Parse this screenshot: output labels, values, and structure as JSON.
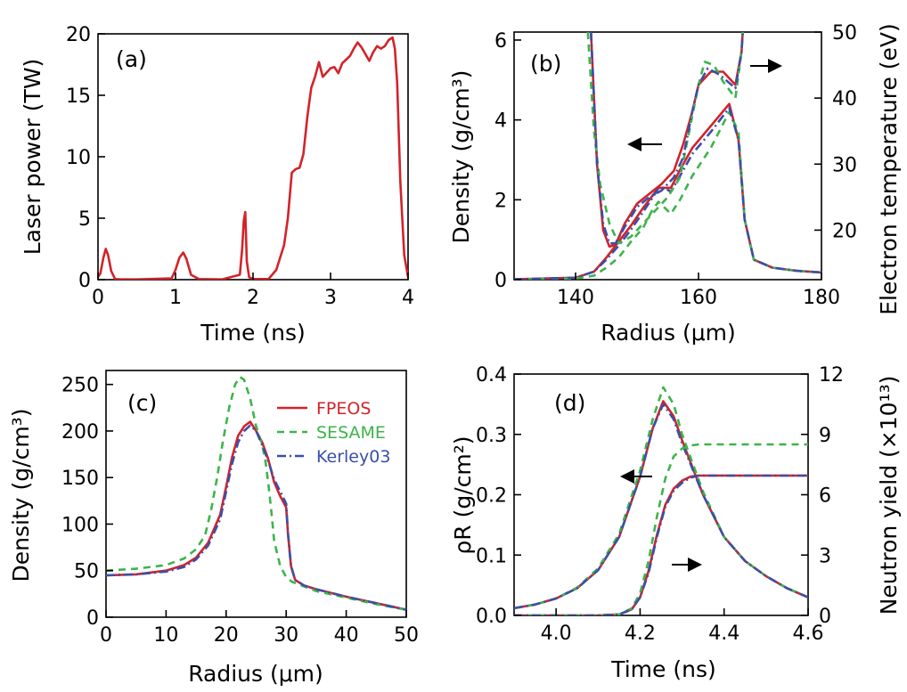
{
  "chart_data": [
    {
      "id": "a",
      "type": "line",
      "panel_label": "(a)",
      "xlabel": "Time (ns)",
      "ylabel": "Laser power (TW)",
      "xlim": [
        0,
        4
      ],
      "ylim": [
        0,
        20
      ],
      "xticks": [
        0,
        1,
        2,
        3,
        4
      ],
      "yticks": [
        0,
        5,
        10,
        15,
        20
      ],
      "series": [
        {
          "name": "Laser power",
          "color": "#d2232a",
          "x": [
            0,
            0.03,
            0.07,
            0.1,
            0.13,
            0.17,
            0.22,
            0.3,
            0.5,
            0.95,
            1.0,
            1.05,
            1.1,
            1.14,
            1.2,
            1.3,
            1.6,
            1.83,
            1.86,
            1.88,
            1.9,
            1.92,
            1.95,
            2.0,
            2.2,
            2.3,
            2.4,
            2.45,
            2.5,
            2.55,
            2.6,
            2.65,
            2.7,
            2.75,
            2.8,
            2.85,
            2.9,
            3.0,
            3.05,
            3.1,
            3.15,
            3.2,
            3.25,
            3.3,
            3.35,
            3.4,
            3.5,
            3.55,
            3.6,
            3.65,
            3.7,
            3.75,
            3.8,
            3.83,
            3.86,
            3.9,
            3.95,
            4.0
          ],
          "y": [
            0.2,
            0.5,
            1.8,
            2.5,
            2.0,
            0.7,
            0.05,
            0.02,
            0.02,
            0.1,
            0.8,
            1.8,
            2.2,
            1.7,
            0.4,
            0.05,
            0.02,
            0.4,
            2.5,
            4.8,
            5.5,
            1.5,
            0.2,
            0.05,
            0.05,
            0.8,
            2.8,
            5.0,
            8.7,
            9.0,
            9.1,
            10.2,
            13.2,
            15.6,
            16.5,
            17.7,
            16.5,
            17.2,
            17.3,
            16.8,
            17.6,
            17.9,
            18.2,
            18.8,
            19.3,
            18.9,
            17.8,
            18.5,
            19.0,
            18.8,
            19.0,
            19.5,
            19.7,
            18.8,
            16.0,
            8.0,
            2.0,
            0.2
          ]
        }
      ]
    },
    {
      "id": "b",
      "type": "line",
      "panel_label": "(b)",
      "xlabel": "Radius (μm)",
      "ylabel": "Density (g/cm³)",
      "y2label": "Electron temperature (eV)",
      "xlim": [
        130,
        180
      ],
      "ylim": [
        0,
        6.2
      ],
      "y2lim": [
        12.5,
        50
      ],
      "xticks": [
        140,
        160,
        180
      ],
      "yticks": [
        0,
        2,
        4,
        6
      ],
      "y2ticks": [
        20,
        30,
        40,
        50
      ],
      "annotations": [
        "arrow-left (density axis)",
        "arrow-right (temperature axis)"
      ],
      "series": [
        {
          "name": "FPEOS density",
          "axis": "left",
          "color": "#d2232a",
          "x": [
            130,
            140,
            143,
            145,
            147,
            149,
            151,
            152.5,
            153.5,
            154.5,
            155.5,
            157,
            159,
            162,
            165,
            166.5,
            167.5,
            169,
            172,
            176,
            180
          ],
          "y": [
            0.01,
            0.05,
            0.2,
            0.55,
            0.95,
            1.35,
            1.8,
            2.1,
            2.3,
            2.3,
            2.3,
            2.75,
            3.3,
            3.85,
            4.4,
            3.5,
            1.5,
            0.5,
            0.3,
            0.22,
            0.18
          ]
        },
        {
          "name": "SESAME density",
          "axis": "left",
          "color": "#3cb44b",
          "x": [
            130,
            140,
            143,
            145,
            147,
            149,
            151,
            152.5,
            153.5,
            154.5,
            155.5,
            157,
            159,
            162,
            165,
            166.5,
            167.5,
            169,
            172,
            176,
            180
          ],
          "y": [
            0.01,
            0.03,
            0.1,
            0.3,
            0.55,
            0.95,
            1.3,
            1.75,
            1.95,
            1.8,
            1.65,
            2.0,
            2.6,
            3.3,
            4.2,
            3.7,
            1.5,
            0.5,
            0.3,
            0.22,
            0.18
          ]
        },
        {
          "name": "Kerley03 density",
          "axis": "left",
          "color": "#3a4fa8",
          "x": [
            130,
            140,
            143,
            145,
            147,
            149,
            151,
            152.5,
            153.5,
            154.5,
            155.5,
            157,
            159,
            162,
            165,
            166.5,
            167.5,
            169,
            172,
            176,
            180
          ],
          "y": [
            0.01,
            0.05,
            0.2,
            0.5,
            0.85,
            1.25,
            1.7,
            2.05,
            2.3,
            2.3,
            2.2,
            2.6,
            3.15,
            3.7,
            4.3,
            3.5,
            1.5,
            0.5,
            0.3,
            0.22,
            0.18
          ]
        },
        {
          "name": "FPEOS temperature",
          "axis": "right",
          "color": "#d2232a",
          "x": [
            142.5,
            143.5,
            144.5,
            145.5,
            146.5,
            148,
            150,
            152,
            154,
            156,
            157.5,
            159,
            160,
            162,
            164,
            166,
            167,
            167.5,
            168
          ],
          "y": [
            50,
            30,
            20,
            17.5,
            17.8,
            21,
            24,
            25.5,
            27,
            29,
            33,
            38,
            42,
            44,
            44,
            42,
            47,
            55,
            60
          ]
        },
        {
          "name": "SESAME temperature",
          "axis": "right",
          "color": "#3cb44b",
          "x": [
            142,
            143,
            144,
            145.5,
            147,
            149,
            151,
            153,
            155,
            157,
            158.5,
            160,
            161,
            162.5,
            164,
            166,
            167,
            167.5,
            168
          ],
          "y": [
            50,
            35,
            27,
            21,
            18,
            19,
            21,
            23,
            25,
            28,
            35,
            42,
            45.5,
            45,
            42.5,
            40,
            47,
            55,
            60
          ]
        },
        {
          "name": "Kerley03 temperature",
          "axis": "right",
          "color": "#3a4fa8",
          "x": [
            142.5,
            143.5,
            144.5,
            145.5,
            146.5,
            148,
            150,
            152,
            154,
            156,
            157.5,
            159,
            160,
            161.5,
            163.5,
            166,
            167,
            167.5,
            168
          ],
          "y": [
            50,
            30,
            21,
            18,
            18,
            20.5,
            23.5,
            25,
            26,
            28,
            31,
            38,
            42,
            44.5,
            43.5,
            41.5,
            47,
            55,
            60
          ]
        }
      ]
    },
    {
      "id": "c",
      "type": "line",
      "panel_label": "(c)",
      "xlabel": "Radius (μm)",
      "ylabel": "Density (g/cm³)",
      "xlim": [
        0,
        50
      ],
      "ylim": [
        0,
        265
      ],
      "xticks": [
        0,
        10,
        20,
        30,
        40,
        50
      ],
      "yticks": [
        0,
        50,
        100,
        150,
        200,
        250
      ],
      "legend": {
        "position": "top-right",
        "entries": [
          "FPEOS",
          "SESAME",
          "Kerley03"
        ]
      },
      "series": [
        {
          "name": "FPEOS",
          "color": "#d2232a",
          "x": [
            0,
            5,
            10,
            13,
            15,
            17,
            19,
            20,
            21,
            22,
            23,
            24,
            25,
            26,
            27,
            28,
            29,
            30,
            30.3,
            30.8,
            31.5,
            33,
            35,
            40,
            45,
            50
          ],
          "y": [
            45,
            46,
            50,
            56,
            64,
            80,
            110,
            140,
            172,
            195,
            205,
            210,
            200,
            188,
            170,
            145,
            130,
            118,
            90,
            55,
            40,
            34,
            30,
            22,
            15,
            8
          ]
        },
        {
          "name": "SESAME",
          "color": "#3cb44b",
          "x": [
            0,
            5,
            10,
            13,
            15,
            16.5,
            17.5,
            18.5,
            19.5,
            20.5,
            21.5,
            22.3,
            23,
            24,
            25,
            26,
            26.5,
            27,
            27.5,
            28,
            29,
            30,
            31,
            33,
            35,
            40,
            45,
            50
          ],
          "y": [
            50,
            52,
            56,
            63,
            73,
            88,
            115,
            150,
            190,
            225,
            250,
            258,
            255,
            235,
            205,
            185,
            170,
            145,
            115,
            82,
            55,
            43,
            38,
            33,
            28,
            21,
            14,
            8
          ]
        },
        {
          "name": "Kerley03",
          "color": "#3a4fa8",
          "x": [
            0,
            5,
            10,
            13,
            15,
            17,
            19,
            20,
            21,
            22,
            23,
            24,
            25,
            26,
            27,
            28,
            29,
            30,
            30.3,
            30.8,
            31.5,
            33,
            35,
            40,
            45,
            50
          ],
          "y": [
            45,
            46,
            49,
            54,
            62,
            77,
            105,
            135,
            165,
            188,
            200,
            206,
            200,
            185,
            168,
            148,
            135,
            122,
            90,
            55,
            40,
            34,
            30,
            22,
            15,
            8
          ]
        }
      ]
    },
    {
      "id": "d",
      "type": "line",
      "panel_label": "(d)",
      "xlabel": "Time (ns)",
      "ylabel": "ρR (g/cm²)",
      "y2label": "Neutron yield (×10¹³)",
      "xlim": [
        3.9,
        4.6
      ],
      "ylim": [
        0,
        0.4
      ],
      "y2lim": [
        0,
        12
      ],
      "xticks": [
        4.0,
        4.2,
        4.4,
        4.6
      ],
      "yticks": [
        0.0,
        0.1,
        0.2,
        0.3,
        0.4
      ],
      "y2ticks": [
        0,
        3,
        6,
        9,
        12
      ],
      "annotations": [
        "arrow-left (ρR axis)",
        "arrow-right (neutron yield axis)"
      ],
      "series": [
        {
          "name": "FPEOS ρR",
          "axis": "left",
          "color": "#d2232a",
          "x": [
            3.9,
            3.95,
            4.0,
            4.05,
            4.1,
            4.15,
            4.2,
            4.23,
            4.255,
            4.28,
            4.3,
            4.35,
            4.4,
            4.45,
            4.5,
            4.55,
            4.6
          ],
          "y": [
            0.012,
            0.018,
            0.028,
            0.045,
            0.075,
            0.13,
            0.23,
            0.31,
            0.355,
            0.33,
            0.29,
            0.2,
            0.13,
            0.09,
            0.065,
            0.045,
            0.03
          ]
        },
        {
          "name": "SESAME ρR",
          "axis": "left",
          "color": "#3cb44b",
          "x": [
            3.9,
            3.95,
            4.0,
            4.05,
            4.1,
            4.15,
            4.2,
            4.23,
            4.255,
            4.28,
            4.3,
            4.35,
            4.4,
            4.45,
            4.5,
            4.55,
            4.6
          ],
          "y": [
            0.012,
            0.018,
            0.028,
            0.046,
            0.078,
            0.135,
            0.24,
            0.325,
            0.378,
            0.35,
            0.3,
            0.205,
            0.13,
            0.09,
            0.065,
            0.045,
            0.03
          ]
        },
        {
          "name": "Kerley03 ρR",
          "axis": "left",
          "color": "#3a4fa8",
          "x": [
            3.9,
            3.95,
            4.0,
            4.05,
            4.1,
            4.15,
            4.2,
            4.23,
            4.255,
            4.28,
            4.3,
            4.35,
            4.4,
            4.45,
            4.5,
            4.55,
            4.6
          ],
          "y": [
            0.012,
            0.018,
            0.028,
            0.045,
            0.075,
            0.13,
            0.23,
            0.31,
            0.35,
            0.325,
            0.285,
            0.2,
            0.13,
            0.09,
            0.065,
            0.045,
            0.03
          ]
        },
        {
          "name": "FPEOS neutron yield",
          "axis": "right",
          "color": "#d2232a",
          "x": [
            3.9,
            4.1,
            4.15,
            4.18,
            4.2,
            4.22,
            4.24,
            4.26,
            4.28,
            4.3,
            4.32,
            4.34,
            4.4,
            4.5,
            4.6
          ],
          "y": [
            0,
            0,
            0.05,
            0.3,
            0.9,
            2.2,
            4.0,
            5.5,
            6.3,
            6.7,
            6.9,
            6.95,
            6.95,
            6.95,
            6.95
          ]
        },
        {
          "name": "SESAME neutron yield",
          "axis": "right",
          "color": "#3cb44b",
          "x": [
            3.9,
            4.1,
            4.15,
            4.18,
            4.2,
            4.22,
            4.24,
            4.26,
            4.28,
            4.3,
            4.32,
            4.34,
            4.4,
            4.5,
            4.6
          ],
          "y": [
            0,
            0,
            0.05,
            0.35,
            1.1,
            2.7,
            4.9,
            6.8,
            7.9,
            8.3,
            8.45,
            8.5,
            8.5,
            8.5,
            8.5
          ]
        },
        {
          "name": "Kerley03 neutron yield",
          "axis": "right",
          "color": "#3a4fa8",
          "x": [
            3.9,
            4.1,
            4.15,
            4.18,
            4.2,
            4.22,
            4.24,
            4.26,
            4.28,
            4.3,
            4.32,
            4.34,
            4.4,
            4.5,
            4.6
          ],
          "y": [
            0,
            0,
            0.05,
            0.3,
            0.9,
            2.1,
            3.9,
            5.4,
            6.2,
            6.6,
            6.85,
            6.95,
            6.95,
            6.95,
            6.95
          ]
        }
      ]
    }
  ]
}
